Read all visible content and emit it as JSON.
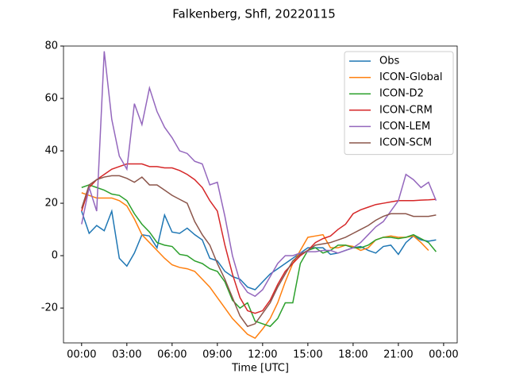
{
  "chart_data": {
    "type": "line",
    "title": "Falkenberg, Shfl, 20220115",
    "x_label": "Time [UTC]",
    "x": [
      0,
      0.5,
      1,
      1.5,
      2,
      2.5,
      3,
      3.5,
      4,
      4.5,
      5,
      5.5,
      6,
      6.5,
      7,
      7.5,
      8,
      8.5,
      9,
      9.5,
      10,
      10.5,
      11,
      11.5,
      12,
      12.5,
      13,
      13.5,
      14,
      14.5,
      15,
      15.5,
      16,
      16.5,
      17,
      17.5,
      18,
      18.5,
      19,
      19.5,
      20,
      20.5,
      21,
      21.5,
      22,
      22.5,
      23,
      23.5
    ],
    "xlim": [
      -1.2,
      24.9
    ],
    "xticks": [
      {
        "value": 0,
        "label": "00:00"
      },
      {
        "value": 3,
        "label": "03:00"
      },
      {
        "value": 6,
        "label": "06:00"
      },
      {
        "value": 9,
        "label": "09:00"
      },
      {
        "value": 12,
        "label": "12:00"
      },
      {
        "value": 15,
        "label": "15:00"
      },
      {
        "value": 18,
        "label": "18:00"
      },
      {
        "value": 21,
        "label": "21:00"
      },
      {
        "value": 24,
        "label": "00:00"
      }
    ],
    "ylim": [
      -33.3,
      80
    ],
    "yticks": [
      -20,
      0,
      20,
      40,
      60,
      80
    ],
    "legend": "upper right",
    "series": [
      {
        "name": "Obs",
        "color": "#1f77b4",
        "values": [
          17,
          8.5,
          11.5,
          9.5,
          17,
          -1,
          -4,
          1,
          8,
          7.5,
          3,
          15.5,
          9,
          8.5,
          10.5,
          8,
          6,
          -1,
          -2,
          -6,
          -8,
          -9,
          -12,
          -13,
          -10,
          -7,
          -5,
          -3,
          -1,
          1,
          3,
          3,
          3,
          0.5,
          1,
          2,
          3,
          3.5,
          2,
          1,
          3.5,
          4,
          0.5,
          5,
          7.5,
          6,
          5.5,
          6
        ]
      },
      {
        "name": "ICON-Global",
        "color": "#ff7f0e",
        "values": [
          24,
          23,
          22,
          22,
          22,
          21,
          19,
          14,
          8,
          5,
          2,
          -1,
          -3.5,
          -4.5,
          -5,
          -6,
          -9,
          -12,
          -16,
          -20,
          -24,
          -27,
          -30,
          -31.5,
          -28,
          -24,
          -18,
          -10,
          -3,
          2,
          7,
          7.5,
          8,
          3,
          3,
          4,
          3.5,
          2,
          3,
          6,
          7,
          7.5,
          7,
          7,
          7.5,
          5,
          2,
          null
        ]
      },
      {
        "name": "ICON-D2",
        "color": "#2ca02c",
        "values": [
          26,
          27,
          26,
          25,
          23.5,
          23,
          21,
          16,
          12,
          9,
          5,
          4,
          3.5,
          0.5,
          0,
          -2,
          -3,
          -5,
          -6,
          -10,
          -17,
          -20,
          -18,
          -25,
          -26,
          -27,
          -24,
          -18,
          -18,
          -3,
          2,
          3,
          1,
          2,
          4,
          4,
          3,
          3,
          4,
          6,
          7,
          7,
          6.5,
          7,
          8,
          6.5,
          5,
          1.5
        ]
      },
      {
        "name": "ICON-CRM",
        "color": "#d62728",
        "values": [
          17,
          26,
          29,
          31,
          33,
          34,
          35,
          35,
          35,
          34,
          34,
          33.5,
          33.5,
          32.5,
          31,
          29,
          26,
          21,
          17,
          4,
          -7,
          -16,
          -21,
          -22,
          -21,
          -17,
          -11,
          -6,
          -3,
          0,
          2,
          5,
          6.5,
          7.5,
          10,
          12,
          16,
          17.5,
          18.5,
          19.5,
          20,
          20.5,
          21,
          21,
          21,
          21.2,
          21.3,
          21.5
        ]
      },
      {
        "name": "ICON-LEM",
        "color": "#9467bd",
        "values": [
          12,
          26,
          17,
          78,
          52,
          38,
          33,
          58,
          50,
          64,
          55,
          49,
          45,
          40,
          39,
          36,
          35,
          27,
          28,
          15,
          0,
          -10,
          -14,
          -15.5,
          -13,
          -8,
          -3,
          0,
          0,
          1,
          1.5,
          1.5,
          2,
          2,
          1,
          2,
          3,
          5,
          8,
          11,
          13,
          17,
          21,
          31,
          29,
          26,
          28,
          21
        ]
      },
      {
        "name": "ICON-SCM",
        "color": "#8c564b",
        "values": [
          18,
          27,
          29,
          30,
          30.5,
          30.5,
          29.5,
          28,
          30,
          27,
          27,
          25,
          23,
          21.5,
          20,
          13,
          8,
          4,
          -3,
          -9,
          -16,
          -23,
          -27,
          -26,
          -22,
          -18,
          -12,
          -7,
          -2,
          0.5,
          2,
          4,
          4.5,
          5,
          6,
          7,
          8.5,
          10,
          11.5,
          13.5,
          15,
          16,
          16,
          16,
          15,
          15,
          15,
          15.5
        ]
      }
    ]
  }
}
